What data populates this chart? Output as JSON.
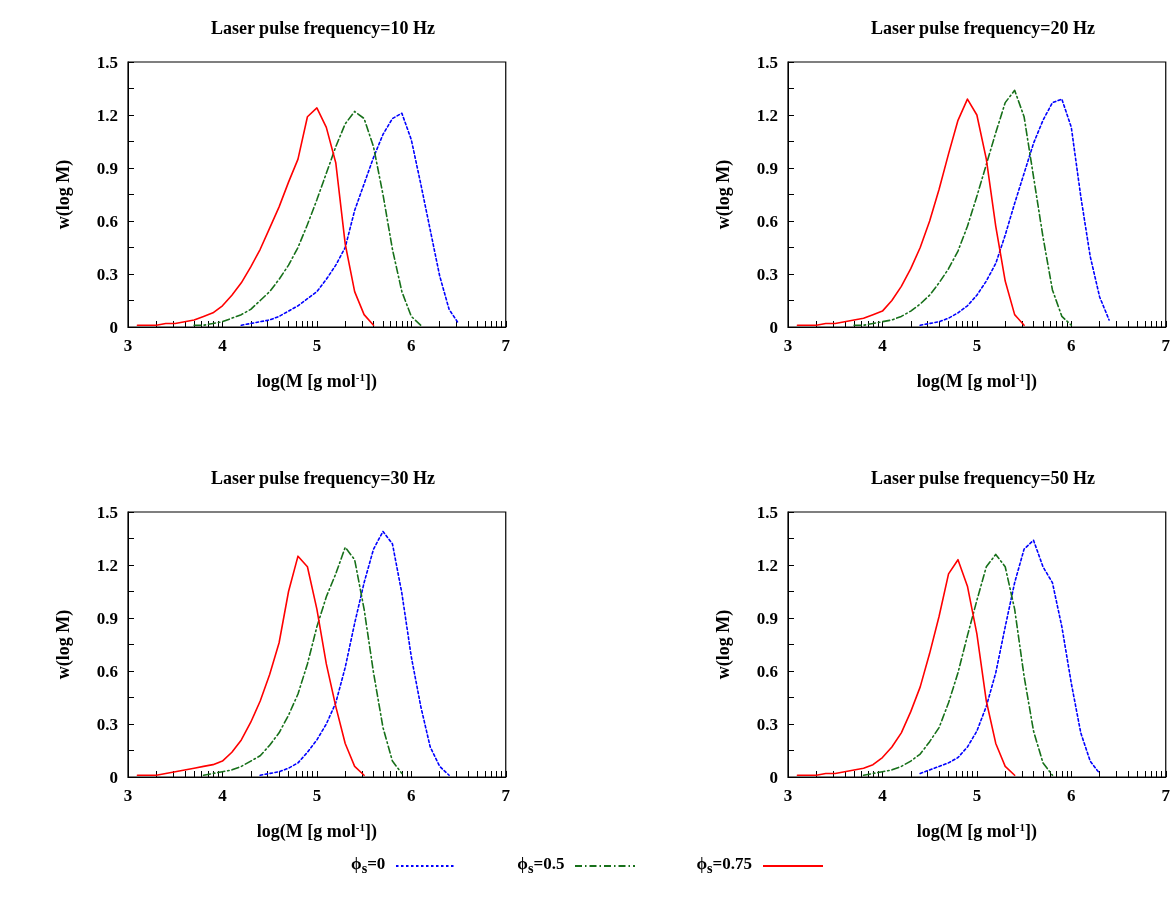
{
  "chart_data": [
    {
      "type": "line",
      "title": "Laser pulse frequency=10 Hz",
      "xlabel": "log(M [g mol$^{-1}$])",
      "ylabel": "w(log M)",
      "xlim": [
        3,
        7
      ],
      "ylim": [
        0,
        1.5
      ],
      "legend": "bottom",
      "xticks": [
        3,
        {
          "value": 3.301,
          "label": null
        },
        {
          "value": 3.477,
          "label": null
        },
        {
          "value": 3.602,
          "label": null
        },
        {
          "value": 3.699,
          "label": null
        },
        {
          "value": 3.778,
          "label": null
        },
        {
          "value": 3.845,
          "label": null
        },
        {
          "value": 3.903,
          "label": null
        },
        {
          "value": 3.954,
          "label": null
        },
        4,
        {
          "value": 4.301,
          "label": null
        },
        {
          "value": 4.477,
          "label": null
        },
        {
          "value": 4.602,
          "label": null
        },
        {
          "value": 4.699,
          "label": null
        },
        {
          "value": 4.778,
          "label": null
        },
        {
          "value": 4.845,
          "label": null
        },
        {
          "value": 4.903,
          "label": null
        },
        {
          "value": 4.954,
          "label": null
        },
        5,
        {
          "value": 5.301,
          "label": null
        },
        {
          "value": 5.477,
          "label": null
        },
        {
          "value": 5.602,
          "label": null
        },
        {
          "value": 5.699,
          "label": null
        },
        {
          "value": 5.778,
          "label": null
        },
        {
          "value": 5.845,
          "label": null
        },
        {
          "value": 5.903,
          "label": null
        },
        {
          "value": 5.954,
          "label": null
        },
        6,
        {
          "value": 6.301,
          "label": null
        },
        {
          "value": 6.477,
          "label": null
        },
        {
          "value": 6.602,
          "label": null
        },
        {
          "value": 6.699,
          "label": null
        },
        {
          "value": 6.778,
          "label": null
        },
        {
          "value": 6.845,
          "label": null
        },
        {
          "value": 6.903,
          "label": null
        },
        {
          "value": 6.954,
          "label": null
        },
        7
      ],
      "yticks": [
        0,
        {
          "value": 0.15,
          "label": null
        },
        0.3,
        {
          "value": 0.45,
          "label": null
        },
        0.6,
        {
          "value": 0.75,
          "label": null
        },
        0.9,
        {
          "value": 1.05,
          "label": null
        },
        1.2,
        {
          "value": 1.35,
          "label": null
        },
        1.5
      ],
      "x": [
        3.1,
        3.2,
        3.3,
        3.4,
        3.5,
        3.6,
        3.7,
        3.8,
        3.9,
        4.0,
        4.1,
        4.2,
        4.3,
        4.4,
        4.5,
        4.6,
        4.7,
        4.8,
        4.9,
        5.0,
        5.1,
        5.2,
        5.3,
        5.4,
        5.5,
        5.6,
        5.7,
        5.8,
        5.9,
        6.0,
        6.1,
        6.2,
        6.3,
        6.4,
        6.5
      ],
      "series": [
        {
          "name": "ϕ$_{s}$=0",
          "color": "#0000ff",
          "line_style": "dotted",
          "values": [
            null,
            null,
            null,
            null,
            null,
            null,
            null,
            null,
            null,
            null,
            null,
            0.01,
            0.02,
            0.03,
            0.04,
            0.06,
            0.09,
            0.12,
            0.16,
            0.2,
            0.27,
            0.35,
            0.45,
            0.66,
            0.81,
            0.96,
            1.09,
            1.18,
            1.21,
            1.06,
            0.81,
            0.55,
            0.29,
            0.1,
            0.02
          ]
        },
        {
          "name": "ϕ$_{s}$=0.5",
          "color": "#17701a",
          "line_style": "dashed",
          "values": [
            null,
            null,
            null,
            null,
            null,
            null,
            0.01,
            0.01,
            0.02,
            0.03,
            0.05,
            0.07,
            0.1,
            0.15,
            0.2,
            0.27,
            0.35,
            0.45,
            0.58,
            0.72,
            0.87,
            1.02,
            1.15,
            1.22,
            1.18,
            1.02,
            0.75,
            0.44,
            0.2,
            0.06,
            0.01,
            null,
            null,
            null,
            null
          ]
        },
        {
          "name": "ϕ$_{s}$=0.75",
          "color": "#ff0000",
          "line_style": "solid",
          "values": [
            0.01,
            0.01,
            0.01,
            0.02,
            0.02,
            0.03,
            0.04,
            0.06,
            0.08,
            0.12,
            0.18,
            0.25,
            0.34,
            0.44,
            0.56,
            0.68,
            0.82,
            0.95,
            1.19,
            1.24,
            1.13,
            0.93,
            0.47,
            0.2,
            0.07,
            0.01,
            null,
            null,
            null,
            null,
            null,
            null,
            null,
            null,
            null
          ]
        }
      ]
    },
    {
      "type": "line",
      "title": "Laser pulse frequency=20 Hz",
      "xlabel": "log(M [g mol$^{-1}$])",
      "ylabel": "w(log M)",
      "xlim": [
        3,
        7
      ],
      "ylim": [
        0,
        1.5
      ],
      "xticks": [
        3,
        {
          "value": 3.301,
          "label": null
        },
        {
          "value": 3.477,
          "label": null
        },
        {
          "value": 3.602,
          "label": null
        },
        {
          "value": 3.699,
          "label": null
        },
        {
          "value": 3.778,
          "label": null
        },
        {
          "value": 3.845,
          "label": null
        },
        {
          "value": 3.903,
          "label": null
        },
        {
          "value": 3.954,
          "label": null
        },
        4,
        {
          "value": 4.301,
          "label": null
        },
        {
          "value": 4.477,
          "label": null
        },
        {
          "value": 4.602,
          "label": null
        },
        {
          "value": 4.699,
          "label": null
        },
        {
          "value": 4.778,
          "label": null
        },
        {
          "value": 4.845,
          "label": null
        },
        {
          "value": 4.903,
          "label": null
        },
        {
          "value": 4.954,
          "label": null
        },
        5,
        {
          "value": 5.301,
          "label": null
        },
        {
          "value": 5.477,
          "label": null
        },
        {
          "value": 5.602,
          "label": null
        },
        {
          "value": 5.699,
          "label": null
        },
        {
          "value": 5.778,
          "label": null
        },
        {
          "value": 5.845,
          "label": null
        },
        {
          "value": 5.903,
          "label": null
        },
        {
          "value": 5.954,
          "label": null
        },
        6,
        {
          "value": 6.301,
          "label": null
        },
        {
          "value": 6.477,
          "label": null
        },
        {
          "value": 6.602,
          "label": null
        },
        {
          "value": 6.699,
          "label": null
        },
        {
          "value": 6.778,
          "label": null
        },
        {
          "value": 6.845,
          "label": null
        },
        {
          "value": 6.903,
          "label": null
        },
        {
          "value": 6.954,
          "label": null
        },
        7
      ],
      "yticks": [
        0,
        {
          "value": 0.15,
          "label": null
        },
        0.3,
        {
          "value": 0.45,
          "label": null
        },
        0.6,
        {
          "value": 0.75,
          "label": null
        },
        0.9,
        {
          "value": 1.05,
          "label": null
        },
        1.2,
        {
          "value": 1.35,
          "label": null
        },
        1.5
      ],
      "x": [
        3.1,
        3.2,
        3.3,
        3.4,
        3.5,
        3.6,
        3.7,
        3.8,
        3.9,
        4.0,
        4.1,
        4.2,
        4.3,
        4.4,
        4.5,
        4.6,
        4.7,
        4.8,
        4.9,
        5.0,
        5.1,
        5.2,
        5.3,
        5.4,
        5.5,
        5.6,
        5.7,
        5.8,
        5.9,
        6.0,
        6.1,
        6.2,
        6.3,
        6.4
      ],
      "series": [
        {
          "color": "#0000ff",
          "line_style": "dotted",
          "values": [
            null,
            null,
            null,
            null,
            null,
            null,
            null,
            null,
            null,
            null,
            null,
            null,
            null,
            0.01,
            0.02,
            0.03,
            0.05,
            0.08,
            0.12,
            0.18,
            0.26,
            0.36,
            0.52,
            0.7,
            0.87,
            1.04,
            1.17,
            1.27,
            1.29,
            1.13,
            0.74,
            0.4,
            0.17,
            0.04
          ]
        },
        {
          "color": "#17701a",
          "line_style": "dashed",
          "values": [
            null,
            null,
            null,
            null,
            null,
            null,
            0.01,
            0.01,
            0.02,
            0.03,
            0.04,
            0.06,
            0.09,
            0.13,
            0.18,
            0.25,
            0.33,
            0.43,
            0.57,
            0.74,
            0.92,
            1.1,
            1.27,
            1.34,
            1.19,
            0.85,
            0.51,
            0.21,
            0.06,
            0.01,
            null,
            null,
            null,
            null
          ]
        },
        {
          "color": "#ff0000",
          "line_style": "solid",
          "values": [
            0.01,
            0.01,
            0.01,
            0.02,
            0.02,
            0.03,
            0.04,
            0.05,
            0.07,
            0.09,
            0.15,
            0.23,
            0.33,
            0.45,
            0.6,
            0.78,
            0.98,
            1.17,
            1.29,
            1.2,
            0.95,
            0.57,
            0.26,
            0.07,
            0.01,
            null,
            null,
            null,
            null,
            null,
            null,
            null,
            null,
            null
          ]
        }
      ]
    },
    {
      "type": "line",
      "title": "Laser pulse frequency=30 Hz",
      "xlabel": "log(M [g mol$^{-1}$])",
      "ylabel": "w(log M)",
      "xlim": [
        3,
        7
      ],
      "ylim": [
        0,
        1.5
      ],
      "xticks": [
        3,
        {
          "value": 3.301,
          "label": null
        },
        {
          "value": 3.477,
          "label": null
        },
        {
          "value": 3.602,
          "label": null
        },
        {
          "value": 3.699,
          "label": null
        },
        {
          "value": 3.778,
          "label": null
        },
        {
          "value": 3.845,
          "label": null
        },
        {
          "value": 3.903,
          "label": null
        },
        {
          "value": 3.954,
          "label": null
        },
        4,
        {
          "value": 4.301,
          "label": null
        },
        {
          "value": 4.477,
          "label": null
        },
        {
          "value": 4.602,
          "label": null
        },
        {
          "value": 4.699,
          "label": null
        },
        {
          "value": 4.778,
          "label": null
        },
        {
          "value": 4.845,
          "label": null
        },
        {
          "value": 4.903,
          "label": null
        },
        {
          "value": 4.954,
          "label": null
        },
        5,
        {
          "value": 5.301,
          "label": null
        },
        {
          "value": 5.477,
          "label": null
        },
        {
          "value": 5.602,
          "label": null
        },
        {
          "value": 5.699,
          "label": null
        },
        {
          "value": 5.778,
          "label": null
        },
        {
          "value": 5.845,
          "label": null
        },
        {
          "value": 5.903,
          "label": null
        },
        {
          "value": 5.954,
          "label": null
        },
        6,
        {
          "value": 6.301,
          "label": null
        },
        {
          "value": 6.477,
          "label": null
        },
        {
          "value": 6.602,
          "label": null
        },
        {
          "value": 6.699,
          "label": null
        },
        {
          "value": 6.778,
          "label": null
        },
        {
          "value": 6.845,
          "label": null
        },
        {
          "value": 6.903,
          "label": null
        },
        {
          "value": 6.954,
          "label": null
        },
        7
      ],
      "yticks": [
        0,
        {
          "value": 0.15,
          "label": null
        },
        0.3,
        {
          "value": 0.45,
          "label": null
        },
        0.6,
        {
          "value": 0.75,
          "label": null
        },
        0.9,
        {
          "value": 1.05,
          "label": null
        },
        1.2,
        {
          "value": 1.35,
          "label": null
        },
        1.5
      ],
      "x": [
        3.1,
        3.2,
        3.3,
        3.4,
        3.5,
        3.6,
        3.7,
        3.8,
        3.9,
        4.0,
        4.1,
        4.2,
        4.3,
        4.4,
        4.5,
        4.6,
        4.7,
        4.8,
        4.9,
        5.0,
        5.1,
        5.2,
        5.3,
        5.4,
        5.5,
        5.6,
        5.7,
        5.8,
        5.9,
        6.0,
        6.1,
        6.2,
        6.3,
        6.4
      ],
      "series": [
        {
          "color": "#0000ff",
          "line_style": "dotted",
          "values": [
            null,
            null,
            null,
            null,
            null,
            null,
            null,
            null,
            null,
            null,
            null,
            null,
            null,
            0.01,
            0.02,
            0.03,
            0.05,
            0.08,
            0.14,
            0.21,
            0.3,
            0.42,
            0.62,
            0.87,
            1.1,
            1.29,
            1.39,
            1.32,
            1.04,
            0.68,
            0.4,
            0.17,
            0.06,
            0.01
          ]
        },
        {
          "color": "#17701a",
          "line_style": "dashed",
          "values": [
            null,
            null,
            null,
            null,
            null,
            null,
            null,
            0.01,
            0.02,
            0.03,
            0.04,
            0.06,
            0.09,
            0.12,
            0.18,
            0.25,
            0.35,
            0.47,
            0.64,
            0.85,
            1.02,
            1.15,
            1.3,
            1.23,
            0.95,
            0.59,
            0.28,
            0.09,
            0.02,
            null,
            null,
            null,
            null,
            null
          ]
        },
        {
          "color": "#ff0000",
          "line_style": "solid",
          "values": [
            0.01,
            0.01,
            0.01,
            0.02,
            0.03,
            0.04,
            0.05,
            0.06,
            0.07,
            0.09,
            0.14,
            0.21,
            0.31,
            0.43,
            0.58,
            0.76,
            1.05,
            1.25,
            1.19,
            0.95,
            0.64,
            0.4,
            0.19,
            0.06,
            0.01,
            null,
            null,
            null,
            null,
            null,
            null,
            null,
            null,
            null
          ]
        }
      ]
    },
    {
      "type": "line",
      "title": "Laser pulse frequency=50 Hz",
      "xlabel": "log(M [g mol$^{-1}$])",
      "ylabel": "w(log M)",
      "xlim": [
        3,
        7
      ],
      "ylim": [
        0,
        1.5
      ],
      "xticks": [
        3,
        {
          "value": 3.301,
          "label": null
        },
        {
          "value": 3.477,
          "label": null
        },
        {
          "value": 3.602,
          "label": null
        },
        {
          "value": 3.699,
          "label": null
        },
        {
          "value": 3.778,
          "label": null
        },
        {
          "value": 3.845,
          "label": null
        },
        {
          "value": 3.903,
          "label": null
        },
        {
          "value": 3.954,
          "label": null
        },
        4,
        {
          "value": 4.301,
          "label": null
        },
        {
          "value": 4.477,
          "label": null
        },
        {
          "value": 4.602,
          "label": null
        },
        {
          "value": 4.699,
          "label": null
        },
        {
          "value": 4.778,
          "label": null
        },
        {
          "value": 4.845,
          "label": null
        },
        {
          "value": 4.903,
          "label": null
        },
        {
          "value": 4.954,
          "label": null
        },
        5,
        {
          "value": 5.301,
          "label": null
        },
        {
          "value": 5.477,
          "label": null
        },
        {
          "value": 5.602,
          "label": null
        },
        {
          "value": 5.699,
          "label": null
        },
        {
          "value": 5.778,
          "label": null
        },
        {
          "value": 5.845,
          "label": null
        },
        {
          "value": 5.903,
          "label": null
        },
        {
          "value": 5.954,
          "label": null
        },
        6,
        {
          "value": 6.301,
          "label": null
        },
        {
          "value": 6.477,
          "label": null
        },
        {
          "value": 6.602,
          "label": null
        },
        {
          "value": 6.699,
          "label": null
        },
        {
          "value": 6.778,
          "label": null
        },
        {
          "value": 6.845,
          "label": null
        },
        {
          "value": 6.903,
          "label": null
        },
        {
          "value": 6.954,
          "label": null
        },
        7
      ],
      "yticks": [
        0,
        {
          "value": 0.15,
          "label": null
        },
        0.3,
        {
          "value": 0.45,
          "label": null
        },
        0.6,
        {
          "value": 0.75,
          "label": null
        },
        0.9,
        {
          "value": 1.05,
          "label": null
        },
        1.2,
        {
          "value": 1.35,
          "label": null
        },
        1.5
      ],
      "x": [
        3.1,
        3.2,
        3.3,
        3.4,
        3.5,
        3.6,
        3.7,
        3.8,
        3.9,
        4.0,
        4.1,
        4.2,
        4.3,
        4.4,
        4.5,
        4.6,
        4.7,
        4.8,
        4.9,
        5.0,
        5.1,
        5.2,
        5.3,
        5.4,
        5.5,
        5.6,
        5.7,
        5.8,
        5.9,
        6.0,
        6.1,
        6.2,
        6.3
      ],
      "series": [
        {
          "color": "#0000ff",
          "line_style": "dotted",
          "values": [
            null,
            null,
            null,
            null,
            null,
            null,
            null,
            null,
            null,
            null,
            null,
            null,
            null,
            0.02,
            0.04,
            0.06,
            0.08,
            0.11,
            0.17,
            0.26,
            0.4,
            0.59,
            0.85,
            1.1,
            1.29,
            1.34,
            1.19,
            1.1,
            0.85,
            0.53,
            0.25,
            0.09,
            0.02
          ]
        },
        {
          "color": "#17701a",
          "line_style": "dashed",
          "values": [
            null,
            null,
            null,
            null,
            null,
            null,
            null,
            0.01,
            0.02,
            0.03,
            0.04,
            0.06,
            0.09,
            0.13,
            0.2,
            0.28,
            0.42,
            0.59,
            0.8,
            1.0,
            1.19,
            1.26,
            1.19,
            0.95,
            0.57,
            0.26,
            0.08,
            0.01,
            null,
            null,
            null,
            null,
            null
          ]
        },
        {
          "color": "#ff0000",
          "line_style": "solid",
          "values": [
            0.01,
            0.01,
            0.01,
            0.02,
            0.02,
            0.03,
            0.04,
            0.05,
            0.07,
            0.11,
            0.17,
            0.25,
            0.37,
            0.51,
            0.7,
            0.91,
            1.15,
            1.23,
            1.08,
            0.81,
            0.43,
            0.19,
            0.06,
            0.01,
            null,
            null,
            null,
            null,
            null,
            null,
            null,
            null,
            null
          ]
        }
      ]
    }
  ]
}
